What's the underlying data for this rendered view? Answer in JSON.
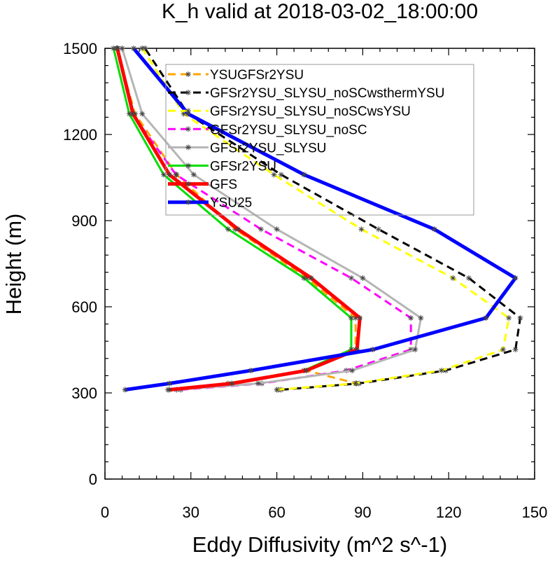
{
  "chart_data": {
    "type": "line",
    "title": "K_h valid at 2018-03-02_18:00:00",
    "xlabel": "Eddy Diffusivity (m^2 s^-1)",
    "ylabel": "Height (m)",
    "xlim": [
      0,
      150
    ],
    "ylim": [
      0,
      1500
    ],
    "x_ticks": [
      "0",
      "30",
      "60",
      "90",
      "120",
      "150"
    ],
    "y_ticks": [
      "0",
      "300",
      "600",
      "900",
      "1200",
      "1500"
    ],
    "legend_position": "top-center",
    "grid": false,
    "series": [
      {
        "name": "YSUGFSr2YSU",
        "color": "#FFA500",
        "dash": true,
        "width": "thin",
        "points": [
          [
            60.5,
            311
          ],
          [
            87.8,
            333
          ],
          [
            70.3,
            378
          ],
          [
            87.5,
            451
          ],
          [
            87.5,
            561
          ],
          [
            70.5,
            700
          ],
          [
            45.5,
            870
          ],
          [
            25,
            1060
          ],
          [
            10.5,
            1272
          ],
          [
            4,
            1500
          ]
        ]
      },
      {
        "name": "GFSr2YSU_SLYSU_noSCwsthermYSU",
        "color": "#000000",
        "dash": true,
        "width": "thin",
        "points": [
          [
            61.5,
            311
          ],
          [
            88.7,
            333
          ],
          [
            119,
            378
          ],
          [
            143.3,
            451
          ],
          [
            145,
            561
          ],
          [
            127,
            700
          ],
          [
            95.5,
            870
          ],
          [
            61.5,
            1060
          ],
          [
            29,
            1272
          ],
          [
            14,
            1500
          ]
        ]
      },
      {
        "name": "GFSr2YSU_SLYSU_noSCwsYSU",
        "color": "#FFFF00",
        "dash": true,
        "width": "thin",
        "points": [
          [
            60,
            311
          ],
          [
            87.5,
            333
          ],
          [
            117.5,
            378
          ],
          [
            139,
            451
          ],
          [
            141,
            561
          ],
          [
            121.5,
            700
          ],
          [
            89.5,
            870
          ],
          [
            59,
            1060
          ],
          [
            27.5,
            1272
          ],
          [
            13,
            1500
          ]
        ]
      },
      {
        "name": "GFSr2YSU_SLYSU_noSC",
        "color": "#FF00FF",
        "dash": true,
        "width": "thin",
        "points": [
          [
            26.5,
            311
          ],
          [
            54.8,
            333
          ],
          [
            84.3,
            378
          ],
          [
            106.8,
            451
          ],
          [
            106.8,
            561
          ],
          [
            86,
            700
          ],
          [
            54.5,
            870
          ],
          [
            24.8,
            1060
          ],
          [
            9.5,
            1272
          ],
          [
            4.5,
            1500
          ]
        ]
      },
      {
        "name": "GFSr2YSU_SLYSU",
        "color": "#B5B5B5",
        "dash": false,
        "width": "thin",
        "points": [
          [
            25,
            311
          ],
          [
            53.5,
            333
          ],
          [
            86.3,
            378
          ],
          [
            108.3,
            451
          ],
          [
            110.3,
            561
          ],
          [
            90,
            700
          ],
          [
            60,
            870
          ],
          [
            31,
            1060
          ],
          [
            13,
            1272
          ],
          [
            6,
            1500
          ]
        ]
      },
      {
        "name": "GFSr2YSU",
        "color": "#00DD00",
        "dash": false,
        "width": "thin",
        "points": [
          [
            22,
            311
          ],
          [
            43,
            333
          ],
          [
            69.5,
            378
          ],
          [
            86,
            451
          ],
          [
            86,
            561
          ],
          [
            69.5,
            700
          ],
          [
            43,
            870
          ],
          [
            20.5,
            1060
          ],
          [
            8.5,
            1272
          ],
          [
            3,
            1500
          ]
        ]
      },
      {
        "name": "GFS",
        "color": "#FF0000",
        "dash": false,
        "width": "thick",
        "points": [
          [
            22.5,
            311
          ],
          [
            44.3,
            333
          ],
          [
            70.3,
            378
          ],
          [
            88,
            451
          ],
          [
            89,
            561
          ],
          [
            72,
            700
          ],
          [
            46.5,
            870
          ],
          [
            22.5,
            1060
          ],
          [
            9.8,
            1272
          ],
          [
            4.3,
            1500
          ]
        ]
      },
      {
        "name": "YSU25",
        "color": "#0000FF",
        "dash": false,
        "width": "thick",
        "points": [
          [
            7,
            311
          ],
          [
            22.5,
            333
          ],
          [
            51,
            378
          ],
          [
            93.5,
            451
          ],
          [
            133,
            561
          ],
          [
            143.3,
            700
          ],
          [
            115,
            870
          ],
          [
            69.5,
            1060
          ],
          [
            29,
            1272
          ],
          [
            10,
            1500
          ]
        ]
      }
    ]
  }
}
